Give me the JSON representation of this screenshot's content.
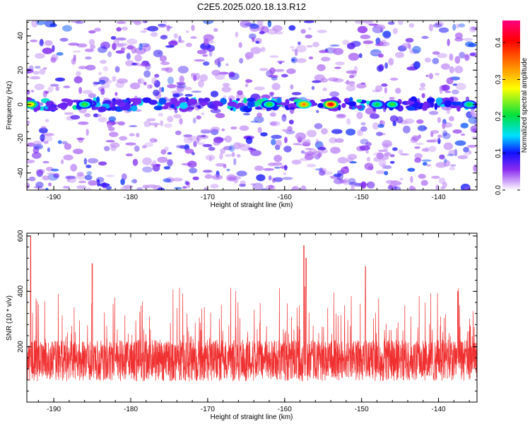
{
  "title": "C2E5.2025.020.18.13.R12",
  "chart_data": [
    {
      "type": "heatmap",
      "xlabel": "Height of straight line (km)",
      "ylabel": "Frequency (Hz)",
      "xlim": [
        -193.5,
        -135
      ],
      "ylim": [
        -50,
        49
      ],
      "xticks": [
        -190,
        -180,
        -170,
        -160,
        -150,
        -140
      ],
      "yticks": [
        -40,
        -20,
        0,
        20,
        40
      ],
      "colorbar": {
        "label": "Normalized spectral amplitude",
        "range": [
          0.0,
          0.46
        ],
        "ticks": [
          "0.0",
          "0.1",
          "0.2",
          "0.3",
          "0.4"
        ],
        "colormap": [
          "#ffffff",
          "#8c2cf0",
          "#1010ff",
          "#00e0ff",
          "#00e040",
          "#ffff00",
          "#ff8000",
          "#ff0000",
          "#ff0080"
        ]
      },
      "band_frequency_hz": 0,
      "band_peaks": [
        {
          "x": -193,
          "amp": 0.3
        },
        {
          "x": -186,
          "amp": 0.22
        },
        {
          "x": -162,
          "amp": 0.22
        },
        {
          "x": -157.5,
          "amp": 0.34
        },
        {
          "x": -154,
          "amp": 0.42
        },
        {
          "x": -148,
          "amp": 0.2
        },
        {
          "x": -146,
          "amp": 0.22
        },
        {
          "x": -136,
          "amp": 0.2
        }
      ],
      "grid": false
    },
    {
      "type": "line",
      "color": "#f03030",
      "xlabel": "Height of straight line (km)",
      "ylabel": "SNR (10 * v/v)",
      "xlim": [
        -193.5,
        -135
      ],
      "ylim": [
        0,
        610
      ],
      "xticks": [
        -190,
        -180,
        -170,
        -160,
        -150,
        -140
      ],
      "yticks": [
        200,
        400,
        600
      ],
      "baseline_snr": 150,
      "notable_peaks": [
        {
          "x": -193,
          "y": 600
        },
        {
          "x": -185,
          "y": 500
        },
        {
          "x": -157.5,
          "y": 565
        },
        {
          "x": -157.2,
          "y": 520
        },
        {
          "x": -149.5,
          "y": 490
        },
        {
          "x": -137.5,
          "y": 400
        }
      ],
      "grid": false
    }
  ]
}
